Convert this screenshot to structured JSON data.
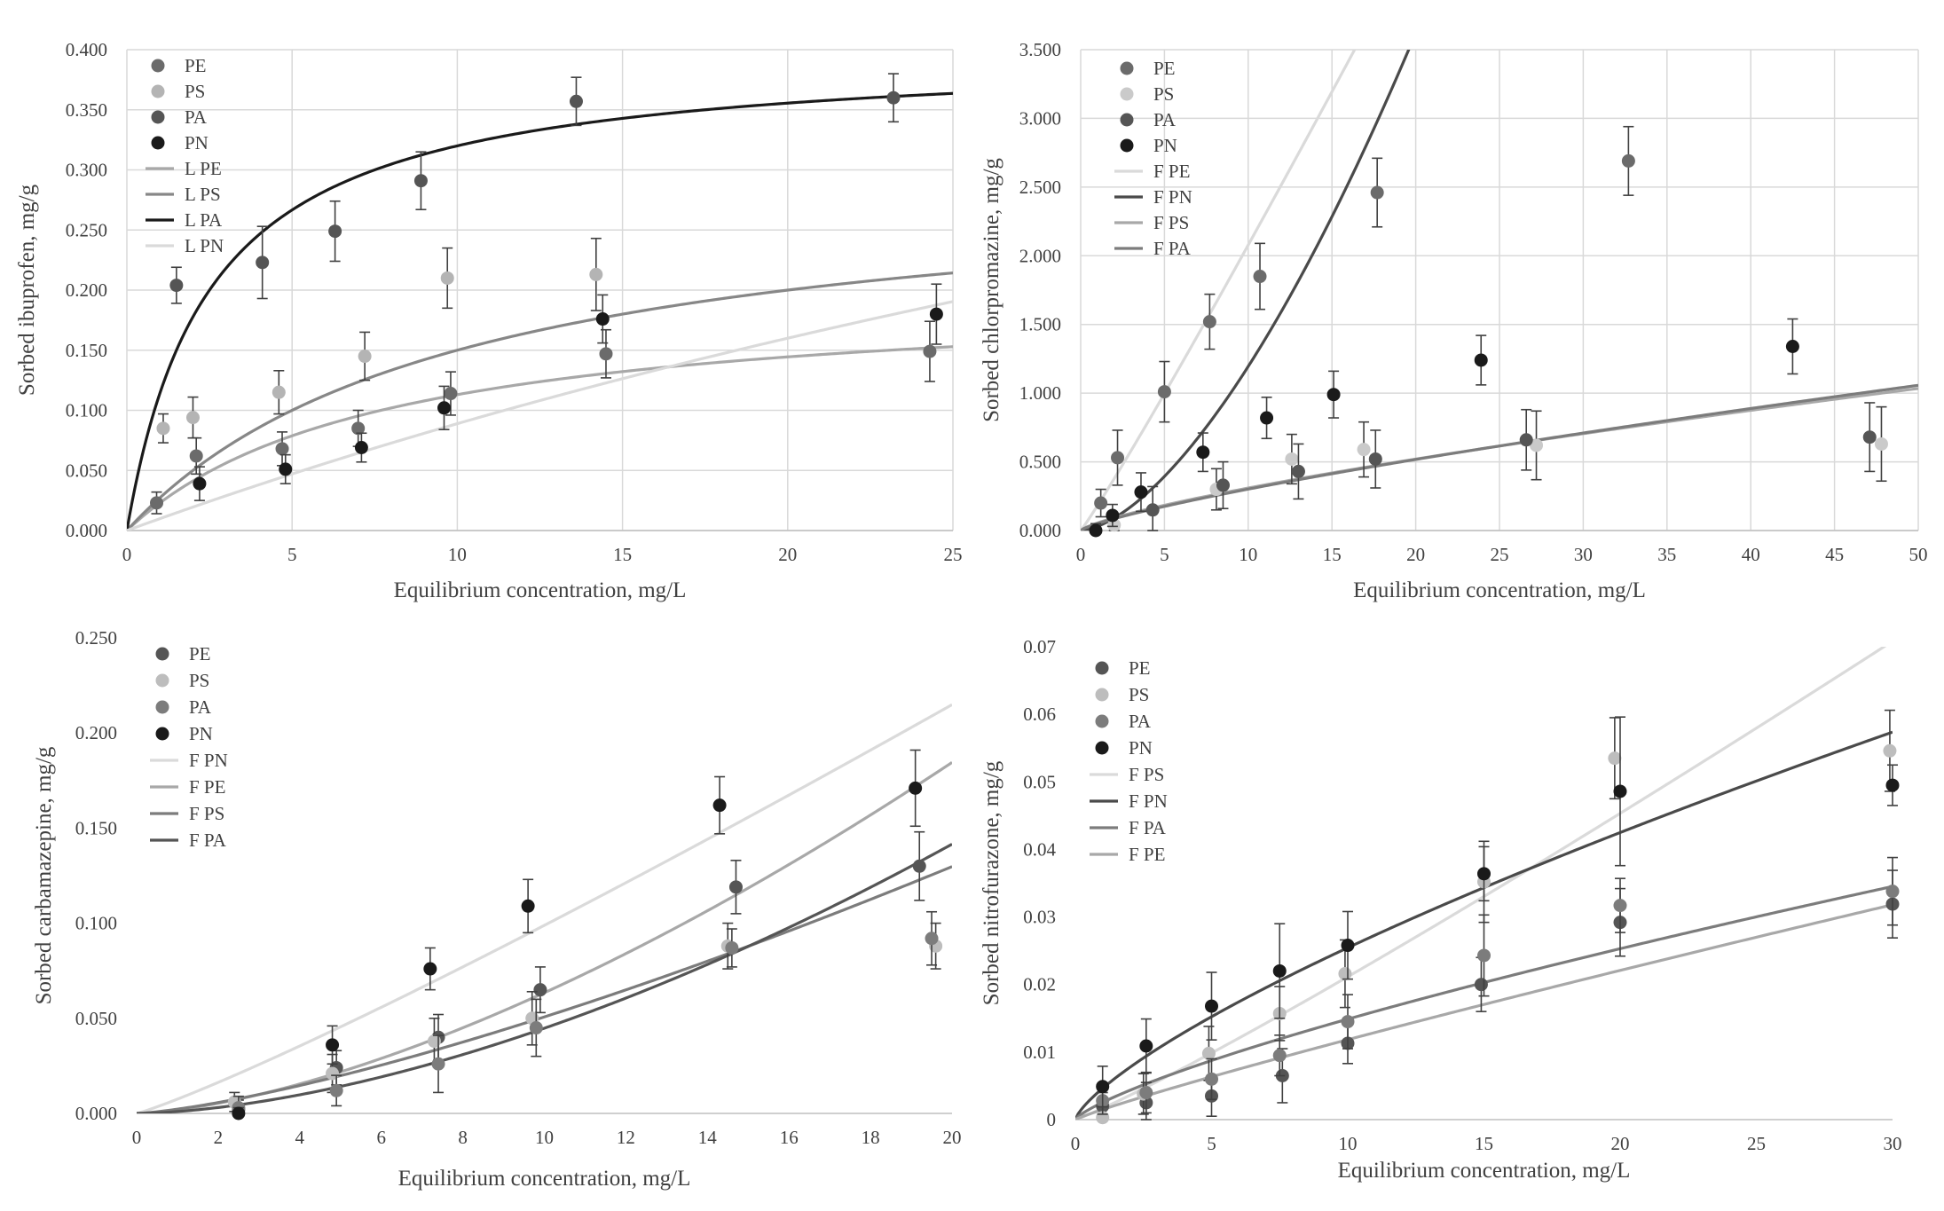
{
  "chart_data": [
    {
      "type": "scatter",
      "xlabel": "Equilibrium concentration, mg/L",
      "ylabel": "Sorbed ibuprofen, mg/g",
      "xlim": [
        0,
        25
      ],
      "ylim": [
        0,
        0.4
      ],
      "x_ticks": [
        "0",
        "5",
        "10",
        "15",
        "20",
        "25"
      ],
      "y_ticks": [
        "0.000",
        "0.050",
        "0.100",
        "0.150",
        "0.200",
        "0.250",
        "0.300",
        "0.350",
        "0.400"
      ],
      "grid": true,
      "legend_position": "top-left",
      "series": [
        {
          "name": "PE",
          "color": "#6b6b6b",
          "points": [
            [
              0.9,
              0.023
            ],
            [
              2.1,
              0.062
            ],
            [
              4.7,
              0.068
            ],
            [
              7.0,
              0.085
            ],
            [
              9.8,
              0.114
            ],
            [
              14.5,
              0.147
            ],
            [
              24.3,
              0.149
            ]
          ],
          "errors": [
            0.009,
            0.015,
            0.014,
            0.015,
            0.018,
            0.02,
            0.025
          ]
        },
        {
          "name": "PS",
          "color": "#b4b4b4",
          "points": [
            [
              1.1,
              0.085
            ],
            [
              2.0,
              0.094
            ],
            [
              4.6,
              0.115
            ],
            [
              7.2,
              0.145
            ],
            [
              9.7,
              0.21
            ],
            [
              14.2,
              0.213
            ]
          ],
          "errors": [
            0.012,
            0.017,
            0.018,
            0.02,
            0.025,
            0.03
          ]
        },
        {
          "name": "PA",
          "color": "#555555",
          "points": [
            [
              1.5,
              0.204
            ],
            [
              4.1,
              0.223
            ],
            [
              6.3,
              0.249
            ],
            [
              8.9,
              0.291
            ],
            [
              13.6,
              0.357
            ],
            [
              23.2,
              0.36
            ]
          ],
          "errors": [
            0.015,
            0.03,
            0.025,
            0.024,
            0.02,
            0.02
          ]
        },
        {
          "name": "PN",
          "color": "#1a1a1a",
          "points": [
            [
              2.2,
              0.039
            ],
            [
              4.8,
              0.051
            ],
            [
              7.1,
              0.069
            ],
            [
              9.6,
              0.102
            ],
            [
              14.4,
              0.176
            ],
            [
              24.5,
              0.18
            ]
          ],
          "errors": [
            0.014,
            0.012,
            0.012,
            0.018,
            0.02,
            0.025
          ]
        }
      ],
      "fits": [
        {
          "name": "L PE",
          "color": "#a8a8a8",
          "model": "langmuir",
          "qmax": 0.2,
          "K": 0.13
        },
        {
          "name": "L PS",
          "color": "#878787",
          "model": "langmuir",
          "qmax": 0.3,
          "K": 0.1
        },
        {
          "name": "L PA",
          "color": "#1a1a1a",
          "model": "langmuir",
          "qmax": 0.4,
          "K": 0.4
        },
        {
          "name": "L PN",
          "color": "#dadada",
          "model": "langmuir",
          "qmax": 0.8,
          "K": 0.0125
        }
      ]
    },
    {
      "type": "scatter",
      "xlabel": "Equilibrium concentration, mg/L",
      "ylabel": "Sorbed chlorpromazine, mg/g",
      "xlim": [
        0,
        50
      ],
      "ylim": [
        0,
        3.5
      ],
      "x_ticks": [
        "0",
        "5",
        "10",
        "15",
        "20",
        "25",
        "30",
        "35",
        "40",
        "45",
        "50"
      ],
      "y_ticks": [
        "0.000",
        "0.500",
        "1.000",
        "1.500",
        "2.000",
        "2.500",
        "3.000",
        "3.500"
      ],
      "grid": true,
      "legend_position": "top-left",
      "series": [
        {
          "name": "PE",
          "color": "#6b6b6b",
          "points": [
            [
              1.2,
              0.2
            ],
            [
              2.2,
              0.53
            ],
            [
              5.0,
              1.01
            ],
            [
              7.7,
              1.52
            ],
            [
              10.7,
              1.85
            ],
            [
              17.7,
              2.46
            ],
            [
              32.7,
              2.69
            ]
          ],
          "errors": [
            0.1,
            0.2,
            0.22,
            0.2,
            0.24,
            0.25,
            0.25
          ]
        },
        {
          "name": "PS",
          "color": "#cacaca",
          "points": [
            [
              2.0,
              0.04
            ],
            [
              8.1,
              0.3
            ],
            [
              12.6,
              0.52
            ],
            [
              16.9,
              0.59
            ],
            [
              27.2,
              0.62
            ],
            [
              47.8,
              0.63
            ]
          ],
          "errors": [
            0.08,
            0.15,
            0.18,
            0.2,
            0.25,
            0.27
          ]
        },
        {
          "name": "PA",
          "color": "#555555",
          "points": [
            [
              4.3,
              0.15
            ],
            [
              8.5,
              0.33
            ],
            [
              13.0,
              0.43
            ],
            [
              17.6,
              0.52
            ],
            [
              26.6,
              0.66
            ],
            [
              47.1,
              0.68
            ]
          ],
          "errors": [
            0.17,
            0.17,
            0.2,
            0.21,
            0.22,
            0.25
          ]
        },
        {
          "name": "PN",
          "color": "#1a1a1a",
          "points": [
            [
              0.9,
              0.0
            ],
            [
              1.9,
              0.11
            ],
            [
              3.6,
              0.28
            ],
            [
              7.3,
              0.57
            ],
            [
              11.1,
              0.82
            ],
            [
              15.1,
              0.99
            ],
            [
              23.9,
              1.24
            ],
            [
              42.5,
              1.34
            ]
          ],
          "errors": [
            0.05,
            0.08,
            0.14,
            0.14,
            0.15,
            0.17,
            0.18,
            0.2
          ]
        }
      ],
      "fits": [
        {
          "name": "F PE",
          "color": "#dadada",
          "model": "freundlich",
          "Kf": 0.181,
          "n": 1.06
        },
        {
          "name": "F PN",
          "color": "#4a4a4a",
          "model": "freundlich",
          "Kf": 0.03,
          "n": 1.6
        },
        {
          "name": "F PS",
          "color": "#a8a8a8",
          "model": "freundlich",
          "Kf": 0.055,
          "n": 0.75
        },
        {
          "name": "F PA",
          "color": "#7c7c7c",
          "model": "freundlich",
          "Kf": 0.05,
          "n": 0.78
        }
      ]
    },
    {
      "type": "scatter",
      "xlabel": "Equilibrium concentration, mg/L",
      "ylabel": "Sorbed carbamazepine, mg/g",
      "xlim": [
        0,
        20
      ],
      "ylim": [
        0,
        0.25
      ],
      "x_ticks": [
        "0",
        "2",
        "4",
        "6",
        "8",
        "10",
        "12",
        "14",
        "16",
        "18",
        "20"
      ],
      "y_ticks": [
        "0.000",
        "0.050",
        "0.100",
        "0.150",
        "0.200",
        "0.250"
      ],
      "grid": false,
      "legend_position": "top-left",
      "series": [
        {
          "name": "PE",
          "color": "#555555",
          "points": [
            [
              2.5,
              0.002
            ],
            [
              4.9,
              0.024
            ],
            [
              7.4,
              0.04
            ],
            [
              9.9,
              0.065
            ],
            [
              14.7,
              0.119
            ],
            [
              19.2,
              0.13
            ]
          ],
          "errors": [
            0.005,
            0.009,
            0.012,
            0.012,
            0.014,
            0.018
          ]
        },
        {
          "name": "PS",
          "color": "#bdbdbd",
          "points": [
            [
              2.4,
              0.006
            ],
            [
              4.8,
              0.021
            ],
            [
              7.3,
              0.038
            ],
            [
              9.7,
              0.05
            ],
            [
              14.5,
              0.088
            ],
            [
              19.6,
              0.088
            ]
          ],
          "errors": [
            0.005,
            0.01,
            0.012,
            0.014,
            0.012,
            0.012
          ]
        },
        {
          "name": "PA",
          "color": "#7c7c7c",
          "points": [
            [
              2.5,
              0.003
            ],
            [
              4.9,
              0.012
            ],
            [
              7.4,
              0.026
            ],
            [
              9.8,
              0.045
            ],
            [
              14.6,
              0.087
            ],
            [
              19.5,
              0.092
            ]
          ],
          "errors": [
            0.006,
            0.008,
            0.015,
            0.015,
            0.01,
            0.014
          ]
        },
        {
          "name": "PN",
          "color": "#1a1a1a",
          "points": [
            [
              2.5,
              0.0
            ],
            [
              4.8,
              0.036
            ],
            [
              7.2,
              0.076
            ],
            [
              9.6,
              0.109
            ],
            [
              14.3,
              0.162
            ],
            [
              19.1,
              0.171
            ]
          ],
          "errors": [
            0.003,
            0.01,
            0.011,
            0.014,
            0.015,
            0.02
          ]
        }
      ],
      "fits": [
        {
          "name": "F PN",
          "color": "#dadada",
          "model": "freundlich",
          "Kf": 0.0075,
          "n": 1.12
        },
        {
          "name": "F PE",
          "color": "#a8a8a8",
          "model": "freundlich",
          "Kf": 0.00183,
          "n": 1.54
        },
        {
          "name": "F PS",
          "color": "#7c7c7c",
          "model": "freundlich",
          "Kf": 0.00224,
          "n": 1.355
        },
        {
          "name": "F PA",
          "color": "#555555",
          "model": "freundlich",
          "Kf": 0.00098,
          "n": 1.66
        }
      ]
    },
    {
      "type": "scatter",
      "xlabel": "Equilibrium concentration, mg/L",
      "ylabel": "Sorbed nitrofurazone, mg/g",
      "xlim": [
        0,
        30
      ],
      "ylim": [
        0,
        0.07
      ],
      "x_ticks": [
        "0",
        "5",
        "10",
        "15",
        "20",
        "25",
        "30"
      ],
      "y_ticks": [
        "0",
        "0.01",
        "0.02",
        "0.03",
        "0.04",
        "0.05",
        "0.06",
        "0.07"
      ],
      "grid": false,
      "legend_position": "top-left",
      "series": [
        {
          "name": "PE",
          "color": "#555555",
          "points": [
            [
              1.0,
              0.002
            ],
            [
              2.6,
              0.0025
            ],
            [
              5.0,
              0.0035
            ],
            [
              7.6,
              0.0065
            ],
            [
              10.0,
              0.0113
            ],
            [
              14.9,
              0.02
            ],
            [
              20.0,
              0.0292
            ],
            [
              30.0,
              0.0319
            ]
          ],
          "errors": [
            0.002,
            0.003,
            0.003,
            0.004,
            0.003,
            0.004,
            0.005,
            0.005
          ]
        },
        {
          "name": "PS",
          "color": "#bdbdbd",
          "points": [
            [
              1.0,
              0.0003
            ],
            [
              2.5,
              0.0038
            ],
            [
              4.9,
              0.0098
            ],
            [
              7.5,
              0.0157
            ],
            [
              9.9,
              0.0216
            ],
            [
              15.0,
              0.0352
            ],
            [
              19.8,
              0.0535
            ],
            [
              29.9,
              0.0546
            ]
          ],
          "errors": [
            0.002,
            0.003,
            0.004,
            0.004,
            0.005,
            0.006,
            0.006,
            0.006
          ]
        },
        {
          "name": "PA",
          "color": "#7c7c7c",
          "points": [
            [
              1.0,
              0.0028
            ],
            [
              2.6,
              0.004
            ],
            [
              5.0,
              0.006
            ],
            [
              7.5,
              0.0095
            ],
            [
              10.0,
              0.0145
            ],
            [
              15.0,
              0.0243
            ],
            [
              20.0,
              0.0317
            ],
            [
              30.0,
              0.0338
            ]
          ],
          "errors": [
            0.002,
            0.003,
            0.003,
            0.003,
            0.004,
            0.006,
            0.004,
            0.005
          ]
        },
        {
          "name": "PN",
          "color": "#1a1a1a",
          "points": [
            [
              1.0,
              0.0049
            ],
            [
              2.6,
              0.0109
            ],
            [
              5.0,
              0.0168
            ],
            [
              7.5,
              0.022
            ],
            [
              10.0,
              0.0258
            ],
            [
              15.0,
              0.0364
            ],
            [
              20.0,
              0.0486
            ],
            [
              30.0,
              0.0495
            ]
          ],
          "errors": [
            0.003,
            0.004,
            0.005,
            0.007,
            0.005,
            0.004,
            0.011,
            0.003
          ]
        }
      ],
      "fits": [
        {
          "name": "F PS",
          "color": "#dadada",
          "model": "freundlich",
          "Kf": 0.00168,
          "n": 1.1
        },
        {
          "name": "F PN",
          "color": "#4a4a4a",
          "model": "freundlich",
          "Kf": 0.00463,
          "n": 0.74
        },
        {
          "name": "F PA",
          "color": "#7c7c7c",
          "model": "freundlich",
          "Kf": 0.00255,
          "n": 0.766
        },
        {
          "name": "F PE",
          "color": "#a8a8a8",
          "model": "freundlich",
          "Kf": 0.00149,
          "n": 0.9
        }
      ]
    }
  ]
}
